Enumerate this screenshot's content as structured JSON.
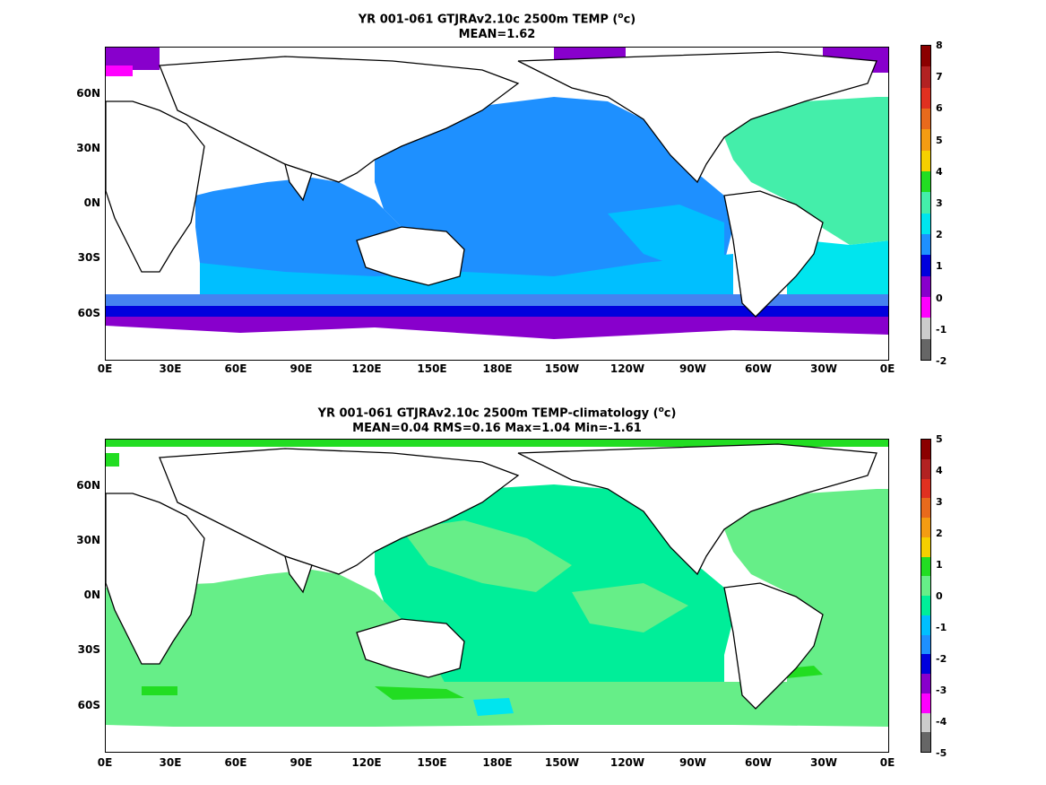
{
  "panels": [
    {
      "title_line1_pre": "YR 001-061 GTJRAv2.10c 2500m TEMP (",
      "title_sup": "o",
      "title_line1_post": "c)",
      "title_line2": "MEAN=1.62",
      "xticks": [
        "0E",
        "30E",
        "60E",
        "90E",
        "120E",
        "150E",
        "180E",
        "150W",
        "120W",
        "90W",
        "60W",
        "30W",
        "0E"
      ],
      "yticks": [
        "60N",
        "30N",
        "0N",
        "30S",
        "60S"
      ],
      "colorbar": {
        "labels": [
          "8",
          "7",
          "6",
          "5",
          "4",
          "3",
          "2",
          "1",
          "0",
          "-1",
          "-2"
        ],
        "colors": [
          "#8b0000",
          "#b22222",
          "#e03020",
          "#e86a1c",
          "#f39c12",
          "#f5d000",
          "#22dd22",
          "#44eeaa",
          "#00e5ee",
          "#1e90ff",
          "#0000dd",
          "#8800cc",
          "#ff00ff",
          "#cccccc",
          "#666666"
        ]
      }
    },
    {
      "title_line1_pre": "YR 001-061 GTJRAv2.10c 2500m TEMP-climatology (",
      "title_sup": "o",
      "title_line1_post": "c)",
      "title_line2": "MEAN=0.04   RMS=0.16   Max=1.04   Min=-1.61",
      "xticks": [
        "0E",
        "30E",
        "60E",
        "90E",
        "120E",
        "150E",
        "180E",
        "150W",
        "120W",
        "90W",
        "60W",
        "30W",
        "0E"
      ],
      "yticks": [
        "60N",
        "30N",
        "0N",
        "30S",
        "60S"
      ],
      "colorbar": {
        "labels": [
          "5",
          "4",
          "3",
          "2",
          "1",
          "0",
          "-1",
          "-2",
          "-3",
          "-4",
          "-5"
        ],
        "colors": [
          "#8b0000",
          "#b22222",
          "#e03020",
          "#e86a1c",
          "#f39c12",
          "#f5d000",
          "#22dd22",
          "#66ee88",
          "#00ee99",
          "#00bfff",
          "#1e90ff",
          "#0000dd",
          "#8800cc",
          "#ff00ff",
          "#cccccc",
          "#666666"
        ]
      }
    }
  ],
  "chart_data": [
    {
      "type": "heatmap",
      "title": "YR 001-061 GTJRAv2.10c 2500m TEMP (oc)",
      "subtitle": "MEAN=1.62",
      "x_range": [
        "0E",
        "0E"
      ],
      "y_range": [
        "80S",
        "90N"
      ],
      "colorbar_range": [
        -2,
        8
      ],
      "mean": 1.62
    },
    {
      "type": "heatmap",
      "title": "YR 001-061 GTJRAv2.10c 2500m TEMP-climatology (oc)",
      "subtitle": "MEAN=0.04 RMS=0.16 Max=1.04 Min=-1.61",
      "x_range": [
        "0E",
        "0E"
      ],
      "y_range": [
        "80S",
        "90N"
      ],
      "colorbar_range": [
        -5,
        5
      ],
      "mean": 0.04,
      "rms": 0.16,
      "max": 1.04,
      "min": -1.61
    }
  ]
}
